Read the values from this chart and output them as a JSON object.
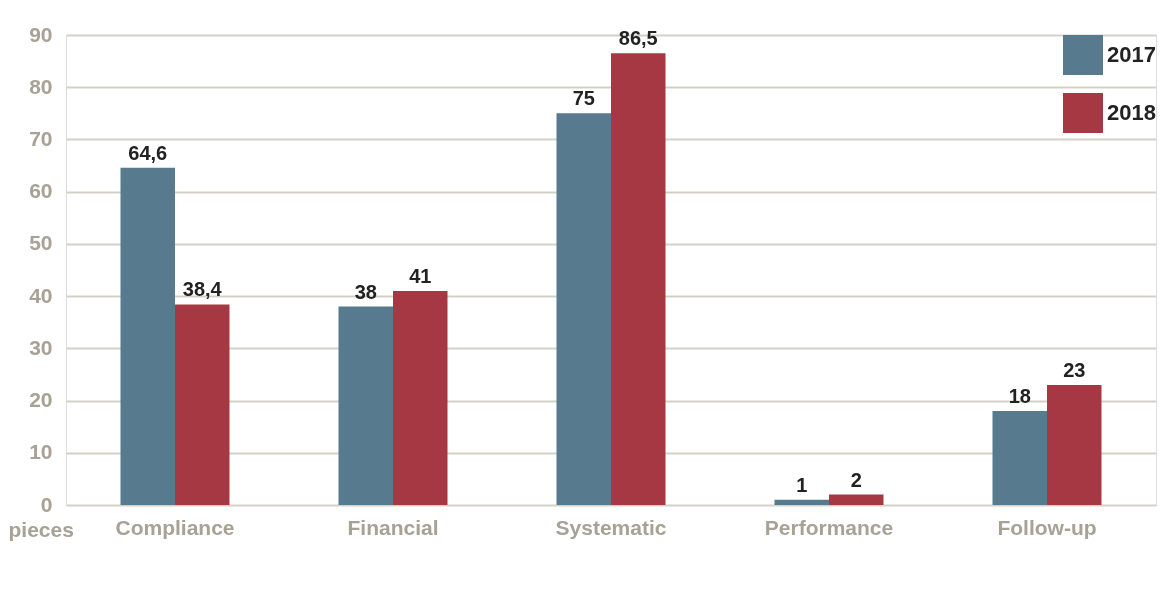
{
  "chart_data": {
    "type": "bar",
    "ylabel": "pieces",
    "categories": [
      "Compliance",
      "Financial",
      "Systematic",
      "Performance",
      "Follow-up"
    ],
    "series": [
      {
        "name": "2017",
        "color": "#587a8f",
        "values": [
          64.6,
          38,
          75,
          1,
          18
        ],
        "value_labels": [
          "64,6",
          "38",
          "75",
          "1",
          "18"
        ]
      },
      {
        "name": "2018",
        "color": "#a53843",
        "values": [
          38.4,
          41,
          86.5,
          2,
          23
        ],
        "value_labels": [
          "38,4",
          "41",
          "86,5",
          "2",
          "23"
        ]
      }
    ],
    "ylim": [
      0,
      90
    ],
    "yticks": [
      0,
      10,
      20,
      30,
      40,
      50,
      60,
      70,
      80,
      90
    ],
    "grid": "y",
    "legend": "top right"
  }
}
